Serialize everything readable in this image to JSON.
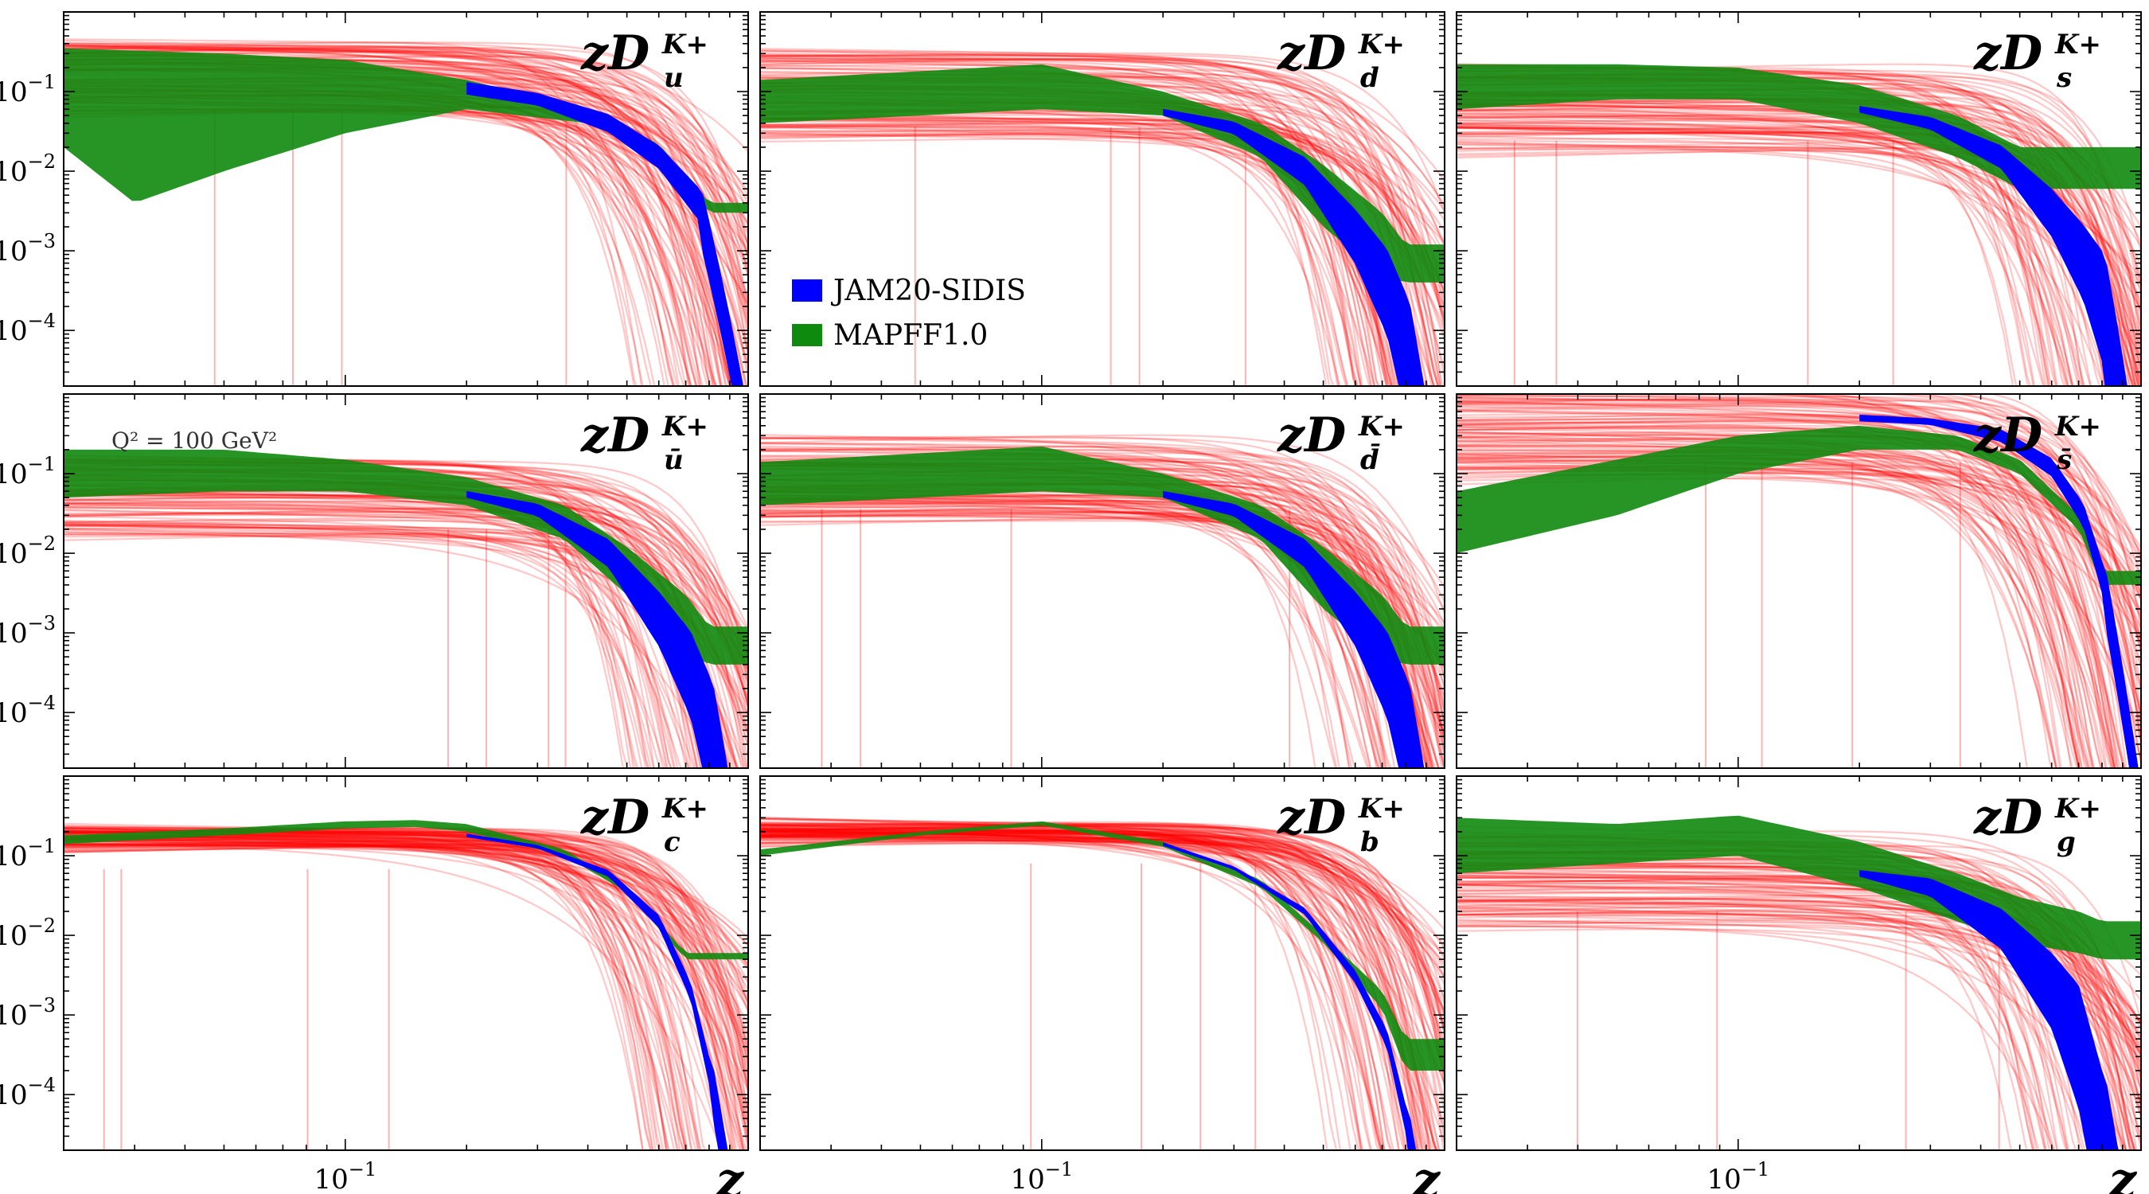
{
  "chart_data": {
    "type": "line",
    "xscale": "log",
    "yscale": "log",
    "xlim": [
      0.02,
      1.0
    ],
    "ylim": [
      2e-05,
      1.0
    ],
    "xlabel": "z",
    "xtick_label": "10",
    "xtick_exp": "−1",
    "ytick_labels": [
      {
        "base": "10",
        "exp": "−1"
      },
      {
        "base": "10",
        "exp": "−2"
      },
      {
        "base": "10",
        "exp": "−3"
      },
      {
        "base": "10",
        "exp": "−4"
      }
    ],
    "annotation": "Q² = 100 GeV²",
    "legend": [
      {
        "name": "JAM20-SIDIS",
        "color": "#0000ff"
      },
      {
        "name": "MAPFF1.0",
        "color": "#0e8a0e"
      }
    ],
    "replica_color": "#ff0000",
    "panels": [
      {
        "label": "zD",
        "sup": "K+",
        "sub": "u",
        "jam": [
          [
            0.2,
            0.11
          ],
          [
            0.3,
            0.08
          ],
          [
            0.45,
            0.04
          ],
          [
            0.6,
            0.015
          ],
          [
            0.75,
            0.004
          ]
        ],
        "jam_width": [
          1.2,
          1.2,
          1.3,
          1.4,
          1.6
        ],
        "mapff_upper": [
          [
            0.02,
            0.35
          ],
          [
            0.05,
            0.3
          ],
          [
            0.1,
            0.25
          ],
          [
            0.2,
            0.14
          ],
          [
            0.4,
            0.06
          ],
          [
            0.6,
            0.022
          ],
          [
            0.8,
            0.004
          ]
        ],
        "mapff_lower": [
          [
            0.02,
            0.02
          ],
          [
            0.03,
            0.004
          ],
          [
            0.05,
            0.01
          ],
          [
            0.1,
            0.03
          ],
          [
            0.2,
            0.06
          ],
          [
            0.4,
            0.04
          ],
          [
            0.6,
            0.016
          ],
          [
            0.8,
            0.003
          ]
        ],
        "rep_level": 0.15,
        "rep_spread": 0.45
      },
      {
        "label": "zD",
        "sup": "K+",
        "sub": "d",
        "jam": [
          [
            0.2,
            0.055
          ],
          [
            0.3,
            0.035
          ],
          [
            0.45,
            0.01
          ],
          [
            0.6,
            0.0015
          ],
          [
            0.72,
            0.0003
          ],
          [
            0.8,
            5e-05
          ]
        ],
        "jam_width": [
          1.1,
          1.2,
          1.5,
          2.2,
          3.5,
          6
        ],
        "mapff_upper": [
          [
            0.02,
            0.14
          ],
          [
            0.05,
            0.18
          ],
          [
            0.1,
            0.22
          ],
          [
            0.2,
            0.1
          ],
          [
            0.35,
            0.04
          ],
          [
            0.5,
            0.012
          ],
          [
            0.7,
            0.003
          ],
          [
            0.8,
            0.0012
          ]
        ],
        "mapff_lower": [
          [
            0.02,
            0.04
          ],
          [
            0.05,
            0.05
          ],
          [
            0.1,
            0.06
          ],
          [
            0.2,
            0.05
          ],
          [
            0.35,
            0.015
          ],
          [
            0.5,
            0.002
          ],
          [
            0.7,
            0.0005
          ],
          [
            0.8,
            0.0004
          ]
        ],
        "rep_level": 0.09,
        "rep_spread": 0.55
      },
      {
        "label": "zD",
        "sup": "K+",
        "sub": "s",
        "jam": [
          [
            0.2,
            0.06
          ],
          [
            0.3,
            0.04
          ],
          [
            0.45,
            0.015
          ],
          [
            0.6,
            0.003
          ],
          [
            0.72,
            0.0007
          ],
          [
            0.8,
            0.0002
          ]
        ],
        "jam_width": [
          1.1,
          1.2,
          1.4,
          2.0,
          3.0,
          5.0
        ],
        "mapff_upper": [
          [
            0.02,
            0.22
          ],
          [
            0.05,
            0.22
          ],
          [
            0.1,
            0.2
          ],
          [
            0.2,
            0.12
          ],
          [
            0.35,
            0.05
          ],
          [
            0.5,
            0.02
          ]
        ],
        "mapff_lower": [
          [
            0.02,
            0.06
          ],
          [
            0.05,
            0.08
          ],
          [
            0.1,
            0.08
          ],
          [
            0.2,
            0.04
          ],
          [
            0.35,
            0.015
          ],
          [
            0.5,
            0.006
          ]
        ],
        "rep_level": 0.06,
        "rep_spread": 0.55
      },
      {
        "label": "zD",
        "sup": "K+",
        "sub": "ū",
        "jam": [
          [
            0.2,
            0.055
          ],
          [
            0.3,
            0.035
          ],
          [
            0.45,
            0.01
          ],
          [
            0.6,
            0.0015
          ],
          [
            0.72,
            0.0003
          ],
          [
            0.8,
            5e-05
          ]
        ],
        "jam_width": [
          1.1,
          1.2,
          1.5,
          2.2,
          3.5,
          6
        ],
        "mapff_upper": [
          [
            0.02,
            0.2
          ],
          [
            0.05,
            0.2
          ],
          [
            0.1,
            0.15
          ],
          [
            0.2,
            0.09
          ],
          [
            0.35,
            0.04
          ],
          [
            0.5,
            0.012
          ],
          [
            0.7,
            0.003
          ],
          [
            0.8,
            0.0012
          ]
        ],
        "mapff_lower": [
          [
            0.02,
            0.05
          ],
          [
            0.05,
            0.06
          ],
          [
            0.1,
            0.06
          ],
          [
            0.2,
            0.04
          ],
          [
            0.35,
            0.015
          ],
          [
            0.5,
            0.003
          ],
          [
            0.7,
            0.0006
          ],
          [
            0.8,
            0.0004
          ]
        ],
        "rep_level": 0.05,
        "rep_spread": 0.5
      },
      {
        "label": "zD",
        "sup": "K+",
        "sub": "d̄",
        "jam": [
          [
            0.2,
            0.055
          ],
          [
            0.3,
            0.035
          ],
          [
            0.45,
            0.01
          ],
          [
            0.6,
            0.0015
          ],
          [
            0.72,
            0.0003
          ],
          [
            0.8,
            5e-05
          ]
        ],
        "jam_width": [
          1.1,
          1.2,
          1.5,
          2.2,
          3.5,
          6
        ],
        "mapff_upper": [
          [
            0.02,
            0.14
          ],
          [
            0.05,
            0.18
          ],
          [
            0.1,
            0.22
          ],
          [
            0.2,
            0.1
          ],
          [
            0.35,
            0.04
          ],
          [
            0.5,
            0.012
          ],
          [
            0.7,
            0.003
          ],
          [
            0.8,
            0.0012
          ]
        ],
        "mapff_lower": [
          [
            0.02,
            0.04
          ],
          [
            0.05,
            0.05
          ],
          [
            0.1,
            0.06
          ],
          [
            0.2,
            0.05
          ],
          [
            0.35,
            0.015
          ],
          [
            0.5,
            0.002
          ],
          [
            0.7,
            0.0005
          ],
          [
            0.8,
            0.0004
          ]
        ],
        "rep_level": 0.09,
        "rep_spread": 0.55
      },
      {
        "label": "zD",
        "sup": "K+",
        "sub": "s̄",
        "jam": [
          [
            0.2,
            0.5
          ],
          [
            0.3,
            0.45
          ],
          [
            0.45,
            0.3
          ],
          [
            0.6,
            0.12
          ],
          [
            0.72,
            0.03
          ],
          [
            0.8,
            0.005
          ]
        ],
        "jam_width": [
          1.1,
          1.1,
          1.2,
          1.3,
          1.4,
          1.6
        ],
        "mapff_upper": [
          [
            0.02,
            0.06
          ],
          [
            0.05,
            0.15
          ],
          [
            0.1,
            0.3
          ],
          [
            0.2,
            0.4
          ],
          [
            0.35,
            0.3
          ],
          [
            0.5,
            0.15
          ],
          [
            0.7,
            0.03
          ],
          [
            0.8,
            0.006
          ]
        ],
        "mapff_lower": [
          [
            0.02,
            0.01
          ],
          [
            0.05,
            0.03
          ],
          [
            0.1,
            0.1
          ],
          [
            0.2,
            0.2
          ],
          [
            0.35,
            0.2
          ],
          [
            0.5,
            0.1
          ],
          [
            0.7,
            0.02
          ],
          [
            0.8,
            0.004
          ]
        ],
        "rep_level": 0.35,
        "rep_spread": 0.6
      },
      {
        "label": "zD",
        "sup": "K+",
        "sub": "c",
        "jam": [
          [
            0.2,
            0.18
          ],
          [
            0.3,
            0.13
          ],
          [
            0.45,
            0.06
          ],
          [
            0.6,
            0.015
          ],
          [
            0.72,
            0.002
          ],
          [
            0.8,
            0.0002
          ]
        ],
        "jam_width": [
          1.05,
          1.05,
          1.1,
          1.2,
          1.3,
          1.5
        ],
        "mapff_upper": [
          [
            0.02,
            0.18
          ],
          [
            0.05,
            0.22
          ],
          [
            0.1,
            0.27
          ],
          [
            0.15,
            0.28
          ],
          [
            0.2,
            0.25
          ],
          [
            0.35,
            0.12
          ],
          [
            0.5,
            0.04
          ],
          [
            0.7,
            0.006
          ]
        ],
        "mapff_lower": [
          [
            0.02,
            0.14
          ],
          [
            0.05,
            0.18
          ],
          [
            0.1,
            0.22
          ],
          [
            0.15,
            0.23
          ],
          [
            0.2,
            0.2
          ],
          [
            0.35,
            0.1
          ],
          [
            0.5,
            0.035
          ],
          [
            0.7,
            0.005
          ]
        ],
        "rep_level": 0.17,
        "rep_spread": 0.12
      },
      {
        "label": "zD",
        "sup": "K+",
        "sub": "b",
        "jam": [
          [
            0.2,
            0.14
          ],
          [
            0.3,
            0.07
          ],
          [
            0.45,
            0.02
          ],
          [
            0.6,
            0.003
          ],
          [
            0.72,
            0.0005
          ],
          [
            0.8,
            5e-05
          ]
        ],
        "jam_width": [
          1.05,
          1.05,
          1.1,
          1.2,
          1.3,
          1.5
        ],
        "mapff_upper": [
          [
            0.02,
            0.12
          ],
          [
            0.05,
            0.2
          ],
          [
            0.1,
            0.27
          ],
          [
            0.2,
            0.15
          ],
          [
            0.35,
            0.05
          ],
          [
            0.5,
            0.01
          ],
          [
            0.7,
            0.002
          ],
          [
            0.8,
            0.0005
          ]
        ],
        "mapff_lower": [
          [
            0.02,
            0.1
          ],
          [
            0.05,
            0.18
          ],
          [
            0.1,
            0.24
          ],
          [
            0.2,
            0.13
          ],
          [
            0.35,
            0.04
          ],
          [
            0.5,
            0.008
          ],
          [
            0.7,
            0.0012
          ],
          [
            0.8,
            0.0002
          ]
        ],
        "rep_level": 0.2,
        "rep_spread": 0.12
      },
      {
        "label": "zD",
        "sup": "K+",
        "sub": "g",
        "jam": [
          [
            0.2,
            0.06
          ],
          [
            0.3,
            0.04
          ],
          [
            0.45,
            0.012
          ],
          [
            0.6,
            0.002
          ],
          [
            0.7,
            0.0004
          ],
          [
            0.8,
            2e-05
          ]
        ],
        "jam_width": [
          1.1,
          1.3,
          1.8,
          3.0,
          6.0,
          10.0
        ],
        "mapff_upper": [
          [
            0.02,
            0.3
          ],
          [
            0.05,
            0.25
          ],
          [
            0.1,
            0.32
          ],
          [
            0.2,
            0.15
          ],
          [
            0.35,
            0.06
          ],
          [
            0.5,
            0.03
          ],
          [
            0.7,
            0.02
          ],
          [
            0.8,
            0.015
          ]
        ],
        "mapff_lower": [
          [
            0.02,
            0.06
          ],
          [
            0.05,
            0.08
          ],
          [
            0.1,
            0.1
          ],
          [
            0.2,
            0.04
          ],
          [
            0.35,
            0.015
          ],
          [
            0.5,
            0.008
          ],
          [
            0.7,
            0.006
          ],
          [
            0.8,
            0.005
          ]
        ],
        "rep_level": 0.05,
        "rep_spread": 0.6
      }
    ]
  }
}
